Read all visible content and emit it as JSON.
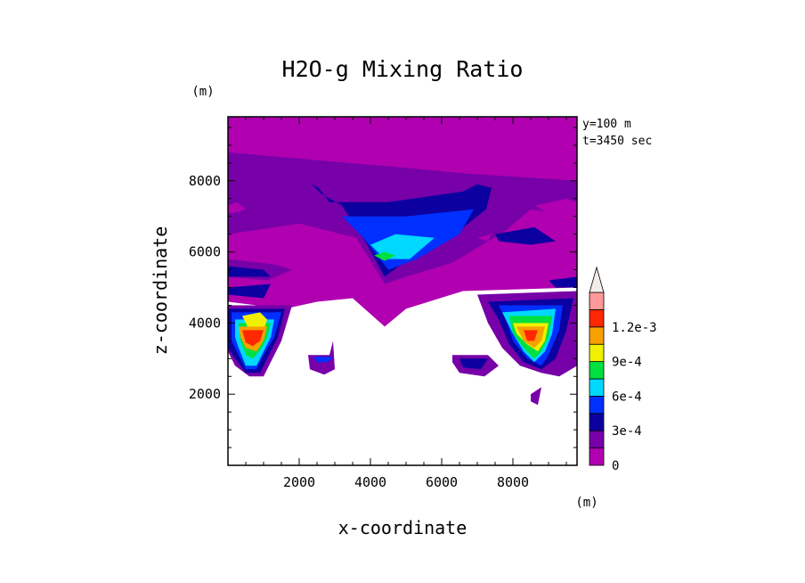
{
  "chart_data": {
    "type": "heatmap",
    "title": "H2O-g Mixing Ratio",
    "xlabel": "x-coordinate",
    "ylabel": "z-coordinate",
    "x_unit": "(m)",
    "y_unit": "(m)",
    "annotations": [
      "y=100 m",
      "t=3450 sec"
    ],
    "xlim": [
      0,
      9800
    ],
    "ylim": [
      0,
      9800
    ],
    "x_ticks": [
      2000,
      4000,
      6000,
      8000
    ],
    "y_ticks": [
      2000,
      4000,
      6000,
      8000
    ],
    "x_tick_labels": [
      "2000",
      "4000",
      "6000",
      "8000"
    ],
    "y_tick_labels": [
      "2000",
      "4000",
      "6000",
      "8000"
    ],
    "colorbar": {
      "levels": [
        0,
        0.00015,
        0.0003,
        0.00045,
        0.0006,
        0.00075,
        0.0009,
        0.00105,
        0.0012,
        0.00135
      ],
      "labels": [
        "0",
        "3e-4",
        "6e-4",
        "9e-4",
        "1.2e-3"
      ],
      "label_values": [
        0,
        0.0003,
        0.0006,
        0.0009,
        0.0012
      ],
      "colors": [
        "#b000b0",
        "#7700a8",
        "#0d00a0",
        "#0030ff",
        "#00d8ff",
        "#00e040",
        "#f0f000",
        "#f8a000",
        "#ff2800",
        "#ff9898",
        "#f4ece8"
      ]
    },
    "regions": [
      {
        "level": 0,
        "poly": [
          [
            0,
            9800
          ],
          [
            9800,
            9800
          ],
          [
            9800,
            5000
          ],
          [
            6600,
            4900
          ],
          [
            5000,
            4400
          ],
          [
            4400,
            3900
          ],
          [
            3500,
            4700
          ],
          [
            2500,
            4600
          ],
          [
            1600,
            4400
          ],
          [
            0,
            4600
          ]
        ]
      },
      {
        "level": 1,
        "poly": [
          [
            0,
            8800
          ],
          [
            3400,
            8500
          ],
          [
            4600,
            8400
          ],
          [
            6700,
            8200
          ],
          [
            9800,
            8000
          ],
          [
            9800,
            7000
          ],
          [
            8500,
            7200
          ],
          [
            7800,
            6600
          ],
          [
            6300,
            5700
          ],
          [
            5000,
            5300
          ],
          [
            4400,
            5100
          ],
          [
            3600,
            6400
          ],
          [
            2000,
            6800
          ],
          [
            0,
            6500
          ]
        ]
      },
      {
        "level": 2,
        "poly": [
          [
            2350,
            7900
          ],
          [
            2550,
            7800
          ],
          [
            2850,
            7400
          ],
          [
            4500,
            7400
          ],
          [
            6600,
            7700
          ],
          [
            7000,
            7900
          ],
          [
            7400,
            7800
          ],
          [
            7250,
            7200
          ],
          [
            6500,
            6600
          ],
          [
            5200,
            5900
          ],
          [
            4400,
            5300
          ],
          [
            3850,
            6300
          ],
          [
            3200,
            7300
          ],
          [
            2600,
            7650
          ]
        ]
      },
      {
        "level": 3,
        "poly": [
          [
            3200,
            7000
          ],
          [
            5000,
            7000
          ],
          [
            6900,
            7200
          ],
          [
            6500,
            6500
          ],
          [
            5300,
            5800
          ],
          [
            4500,
            5500
          ],
          [
            3800,
            6400
          ]
        ]
      },
      {
        "level": 4,
        "poly": [
          [
            4000,
            6200
          ],
          [
            4700,
            6500
          ],
          [
            5800,
            6400
          ],
          [
            5100,
            5800
          ],
          [
            4400,
            5800
          ]
        ]
      },
      {
        "level": 5,
        "poly": [
          [
            4100,
            5900
          ],
          [
            4400,
            6000
          ],
          [
            4700,
            5900
          ],
          [
            4400,
            5750
          ]
        ]
      },
      {
        "level": 1,
        "poly": [
          [
            0,
            5800
          ],
          [
            1300,
            5650
          ],
          [
            1800,
            5500
          ],
          [
            1100,
            5200
          ],
          [
            0,
            5300
          ]
        ]
      },
      {
        "level": 2,
        "poly": [
          [
            0,
            5600
          ],
          [
            1000,
            5500
          ],
          [
            1200,
            5300
          ],
          [
            0,
            5300
          ]
        ]
      },
      {
        "level": 0,
        "poly": [
          [
            0,
            7300
          ],
          [
            250,
            7400
          ],
          [
            500,
            7200
          ],
          [
            200,
            7100
          ],
          [
            0,
            7100
          ]
        ]
      },
      {
        "level": 0,
        "poly": [
          [
            2000,
            6600
          ],
          [
            2400,
            6500
          ],
          [
            2300,
            6350
          ],
          [
            2000,
            6400
          ]
        ]
      },
      {
        "level": 2,
        "poly": [
          [
            0,
            5000
          ],
          [
            1200,
            5100
          ],
          [
            1000,
            4700
          ],
          [
            0,
            4800
          ]
        ]
      },
      {
        "level": 1,
        "poly": [
          [
            0,
            4500
          ],
          [
            1800,
            4500
          ],
          [
            1500,
            3500
          ],
          [
            1200,
            2900
          ],
          [
            1000,
            2500
          ],
          [
            600,
            2500
          ],
          [
            200,
            2800
          ],
          [
            0,
            3200
          ]
        ]
      },
      {
        "level": 2,
        "poly": [
          [
            0,
            4400
          ],
          [
            1600,
            4400
          ],
          [
            1400,
            3600
          ],
          [
            1100,
            3000
          ],
          [
            900,
            2600
          ],
          [
            500,
            2600
          ],
          [
            200,
            3000
          ],
          [
            0,
            3300
          ]
        ]
      },
      {
        "level": 3,
        "poly": [
          [
            100,
            4300
          ],
          [
            1500,
            4300
          ],
          [
            1300,
            3600
          ],
          [
            1000,
            3100
          ],
          [
            800,
            2700
          ],
          [
            500,
            2700
          ],
          [
            300,
            3100
          ],
          [
            100,
            3500
          ]
        ]
      },
      {
        "level": 4,
        "poly": [
          [
            200,
            4100
          ],
          [
            1300,
            4100
          ],
          [
            1200,
            3600
          ],
          [
            1000,
            3200
          ],
          [
            800,
            2800
          ],
          [
            500,
            2800
          ],
          [
            300,
            3300
          ],
          [
            200,
            3600
          ]
        ]
      },
      {
        "level": 5,
        "poly": [
          [
            300,
            4000
          ],
          [
            1200,
            4000
          ],
          [
            1100,
            3600
          ],
          [
            950,
            3300
          ],
          [
            700,
            3000
          ],
          [
            500,
            3100
          ],
          [
            350,
            3500
          ]
        ]
      },
      {
        "level": 6,
        "poly": [
          [
            400,
            4200
          ],
          [
            900,
            4300
          ],
          [
            1100,
            4100
          ],
          [
            1000,
            3800
          ],
          [
            600,
            3800
          ]
        ]
      },
      {
        "level": 7,
        "poly": [
          [
            300,
            3900
          ],
          [
            1100,
            3900
          ],
          [
            1000,
            3500
          ],
          [
            800,
            3200
          ],
          [
            500,
            3300
          ],
          [
            350,
            3600
          ]
        ]
      },
      {
        "level": 8,
        "poly": [
          [
            400,
            3800
          ],
          [
            1000,
            3800
          ],
          [
            900,
            3500
          ],
          [
            700,
            3350
          ],
          [
            500,
            3450
          ]
        ]
      },
      {
        "level": 1,
        "poly": [
          [
            2250,
            3100
          ],
          [
            2850,
            3100
          ],
          [
            2950,
            3500
          ],
          [
            3000,
            2700
          ],
          [
            2700,
            2550
          ],
          [
            2300,
            2700
          ]
        ]
      },
      {
        "level": 3,
        "poly": [
          [
            2400,
            3050
          ],
          [
            2950,
            3050
          ],
          [
            2800,
            2900
          ],
          [
            2500,
            2900
          ]
        ]
      },
      {
        "level": 1,
        "poly": [
          [
            6300,
            3100
          ],
          [
            7300,
            3100
          ],
          [
            7600,
            2800
          ],
          [
            7200,
            2500
          ],
          [
            6500,
            2600
          ],
          [
            6300,
            2900
          ]
        ]
      },
      {
        "level": 2,
        "poly": [
          [
            6500,
            3000
          ],
          [
            7300,
            3000
          ],
          [
            7100,
            2700
          ],
          [
            6600,
            2750
          ]
        ]
      },
      {
        "level": 1,
        "poly": [
          [
            7000,
            4800
          ],
          [
            9800,
            4900
          ],
          [
            9800,
            2800
          ],
          [
            9300,
            2500
          ],
          [
            8800,
            2600
          ],
          [
            8200,
            2800
          ],
          [
            7700,
            3300
          ],
          [
            7300,
            4000
          ]
        ]
      },
      {
        "level": 2,
        "poly": [
          [
            7300,
            4600
          ],
          [
            9700,
            4700
          ],
          [
            9500,
            3800
          ],
          [
            9200,
            3000
          ],
          [
            8800,
            2700
          ],
          [
            8300,
            2900
          ],
          [
            7900,
            3400
          ],
          [
            7600,
            4100
          ]
        ]
      },
      {
        "level": 3,
        "poly": [
          [
            7600,
            4500
          ],
          [
            9400,
            4500
          ],
          [
            9300,
            3800
          ],
          [
            9000,
            3100
          ],
          [
            8800,
            2800
          ],
          [
            8400,
            3000
          ],
          [
            8000,
            3500
          ],
          [
            7800,
            4100
          ]
        ]
      },
      {
        "level": 4,
        "poly": [
          [
            7700,
            4300
          ],
          [
            9200,
            4400
          ],
          [
            9100,
            3700
          ],
          [
            8900,
            3200
          ],
          [
            8600,
            2900
          ],
          [
            8300,
            3200
          ],
          [
            8000,
            3700
          ]
        ]
      },
      {
        "level": 5,
        "poly": [
          [
            7900,
            4200
          ],
          [
            9100,
            4200
          ],
          [
            9000,
            3600
          ],
          [
            8800,
            3200
          ],
          [
            8600,
            3000
          ],
          [
            8300,
            3300
          ],
          [
            8000,
            3700
          ]
        ]
      },
      {
        "level": 6,
        "poly": [
          [
            8000,
            4000
          ],
          [
            9000,
            4000
          ],
          [
            8900,
            3500
          ],
          [
            8700,
            3200
          ],
          [
            8400,
            3400
          ],
          [
            8100,
            3700
          ]
        ]
      },
      {
        "level": 7,
        "poly": [
          [
            8100,
            3900
          ],
          [
            8900,
            3900
          ],
          [
            8800,
            3500
          ],
          [
            8600,
            3300
          ],
          [
            8300,
            3500
          ]
        ]
      },
      {
        "level": 8,
        "poly": [
          [
            8300,
            3800
          ],
          [
            8700,
            3800
          ],
          [
            8600,
            3500
          ],
          [
            8400,
            3500
          ]
        ]
      },
      {
        "level": 1,
        "poly": [
          [
            8500,
            2000
          ],
          [
            8800,
            2200
          ],
          [
            8700,
            1700
          ],
          [
            8500,
            1800
          ]
        ]
      },
      {
        "level": 0,
        "poly": [
          [
            8600,
            7300
          ],
          [
            9500,
            7500
          ],
          [
            9800,
            7400
          ],
          [
            9800,
            6900
          ],
          [
            9200,
            7000
          ]
        ]
      },
      {
        "level": 0,
        "poly": [
          [
            7000,
            6400
          ],
          [
            7400,
            6500
          ],
          [
            7300,
            6300
          ]
        ]
      },
      {
        "level": 2,
        "poly": [
          [
            7500,
            6500
          ],
          [
            8600,
            6700
          ],
          [
            9200,
            6300
          ],
          [
            8500,
            6200
          ],
          [
            7600,
            6300
          ]
        ]
      },
      {
        "level": 2,
        "poly": [
          [
            9000,
            5200
          ],
          [
            9800,
            5300
          ],
          [
            9800,
            5000
          ],
          [
            9200,
            5000
          ]
        ]
      }
    ]
  }
}
